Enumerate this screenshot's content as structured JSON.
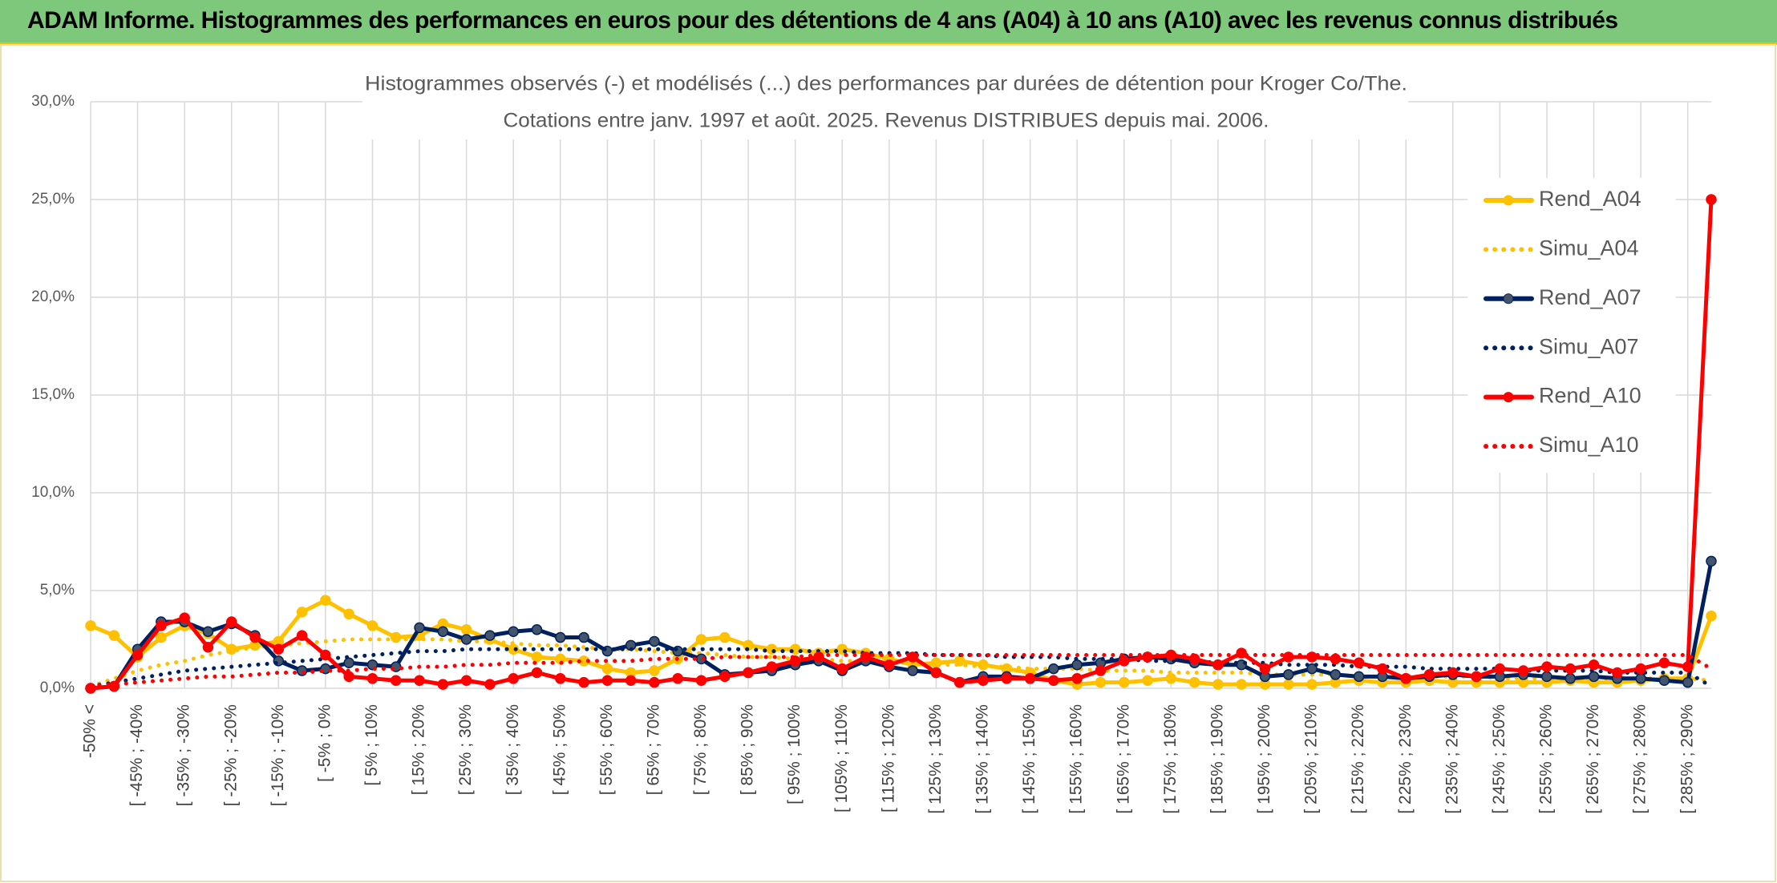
{
  "header": "ADAM Informe. Histogrammes des performances en euros pour des détentions de 4 ans (A04) à 10 ans (A10) avec les revenus connus distribués",
  "chart_data": {
    "type": "line",
    "title": "Histogrammes observés (-) et modélisés (...) des performances par durées de détention pour Kroger Co/The.",
    "subtitle": "Cotations entre janv. 1997 et août. 2025. Revenus DISTRIBUES depuis mai. 2006.",
    "categories": [
      "-50% <",
      null,
      "[ -45% ; -40%",
      null,
      "[ -35% ; -30%",
      null,
      "[ -25% ; -20%",
      null,
      "[ -15% ; -10%",
      null,
      "[ -5% ; 0%",
      null,
      "[ 5% ; 10%",
      null,
      "[ 15% ; 20%",
      null,
      "[ 25% ; 30%",
      null,
      "[ 35% ; 40%",
      null,
      "[ 45% ; 50%",
      null,
      "[ 55% ; 60%",
      null,
      "[ 65% ; 70%",
      null,
      "[ 75% ; 80%",
      null,
      "[ 85% ; 90%",
      null,
      "[ 95% ; 100%",
      null,
      "[ 105% ; 110%",
      null,
      "[ 115% ; 120%",
      null,
      "[ 125% ; 130%",
      null,
      "[ 135% ; 140%",
      null,
      "[ 145% ; 150%",
      null,
      "[ 155% ; 160%",
      null,
      "[ 165% ; 170%",
      null,
      "[ 175% ; 180%",
      null,
      "[ 185% ; 190%",
      null,
      "[ 195% ; 200%",
      null,
      "[ 205% ; 210%",
      null,
      "[ 215% ; 220%",
      null,
      "[ 225% ; 230%",
      null,
      "[ 235% ; 240%",
      null,
      "[ 245% ; 250%",
      null,
      "[ 255% ; 260%",
      null,
      "[ 265% ; 270%",
      null,
      "[ 275% ; 280%",
      null,
      "[ 285% ; 290%",
      null
    ],
    "series": [
      {
        "name": "Rend_A04",
        "color": "#FFC000",
        "style": "solid",
        "marker": true,
        "values": [
          3.2,
          2.7,
          1.6,
          2.6,
          3.2,
          2.8,
          2.0,
          2.2,
          2.4,
          3.9,
          4.5,
          3.8,
          3.2,
          2.6,
          2.7,
          3.3,
          3.0,
          2.5,
          2.0,
          1.6,
          1.5,
          1.4,
          1.0,
          0.8,
          0.9,
          1.5,
          2.5,
          2.6,
          2.2,
          2.0,
          2.0,
          1.8,
          2.0,
          1.8,
          1.5,
          1.2,
          1.3,
          1.4,
          1.2,
          1.0,
          0.8,
          0.4,
          0.2,
          0.3,
          0.3,
          0.4,
          0.5,
          0.3,
          0.2,
          0.2,
          0.2,
          0.2,
          0.2,
          0.3,
          0.4,
          0.3,
          0.3,
          0.4,
          0.3,
          0.3,
          0.3,
          0.3,
          0.3,
          0.4,
          0.3,
          0.3,
          0.4,
          0.5,
          0.5,
          3.7
        ]
      },
      {
        "name": "Simu_A04",
        "color": "#FFC000",
        "style": "dotted",
        "marker": false,
        "values": [
          0.1,
          0.5,
          0.9,
          1.2,
          1.4,
          1.7,
          1.9,
          2.1,
          2.2,
          2.3,
          2.4,
          2.5,
          2.5,
          2.5,
          2.5,
          2.5,
          2.4,
          2.4,
          2.3,
          2.2,
          2.2,
          2.1,
          2.0,
          2.0,
          1.9,
          1.8,
          1.8,
          1.7,
          1.6,
          1.6,
          1.5,
          1.5,
          1.4,
          1.4,
          1.3,
          1.3,
          1.2,
          1.2,
          1.1,
          1.1,
          1.0,
          1.0,
          1.0,
          0.9,
          0.9,
          0.9,
          0.8,
          0.8,
          0.8,
          0.8,
          0.7,
          0.7,
          0.7,
          0.7,
          0.6,
          0.6,
          0.6,
          0.6,
          0.6,
          0.6,
          0.5,
          0.5,
          0.5,
          0.5,
          0.5,
          0.5,
          0.5,
          0.5,
          0.5,
          0.4
        ]
      },
      {
        "name": "Rend_A07",
        "color": "#002060",
        "style": "solid",
        "marker": true,
        "values": [
          0,
          0.1,
          2.0,
          3.4,
          3.4,
          2.9,
          3.3,
          2.7,
          1.4,
          0.9,
          1.0,
          1.3,
          1.2,
          1.1,
          3.1,
          2.9,
          2.5,
          2.7,
          2.9,
          3.0,
          2.6,
          2.6,
          1.9,
          2.2,
          2.4,
          1.9,
          1.5,
          0.7,
          0.8,
          0.9,
          1.2,
          1.4,
          0.9,
          1.4,
          1.1,
          0.9,
          0.8,
          0.3,
          0.6,
          0.6,
          0.5,
          1.0,
          1.2,
          1.3,
          1.5,
          1.6,
          1.5,
          1.3,
          1.2,
          1.2,
          0.6,
          0.7,
          1.0,
          0.7,
          0.6,
          0.6,
          0.5,
          0.6,
          0.7,
          0.6,
          0.6,
          0.7,
          0.6,
          0.5,
          0.6,
          0.5,
          0.5,
          0.4,
          0.3,
          6.5
        ]
      },
      {
        "name": "Simu_A07",
        "color": "#002060",
        "style": "dotted",
        "marker": false,
        "values": [
          0.1,
          0.3,
          0.5,
          0.7,
          0.9,
          1.0,
          1.1,
          1.2,
          1.3,
          1.4,
          1.5,
          1.6,
          1.7,
          1.8,
          1.9,
          1.9,
          2.0,
          2.0,
          2.0,
          2.0,
          2.0,
          2.0,
          2.0,
          2.0,
          2.0,
          2.0,
          2.0,
          2.0,
          2.0,
          1.9,
          1.9,
          1.9,
          1.9,
          1.8,
          1.8,
          1.8,
          1.7,
          1.7,
          1.7,
          1.6,
          1.6,
          1.6,
          1.5,
          1.5,
          1.5,
          1.4,
          1.4,
          1.4,
          1.3,
          1.3,
          1.3,
          1.2,
          1.2,
          1.2,
          1.1,
          1.1,
          1.1,
          1.0,
          1.0,
          1.0,
          1.0,
          0.9,
          0.9,
          0.9,
          0.9,
          0.8,
          0.8,
          0.8,
          0.8,
          0.1
        ]
      },
      {
        "name": "Rend_A10",
        "color": "#FF0000",
        "style": "solid",
        "marker": true,
        "values": [
          0,
          0.1,
          1.7,
          3.2,
          3.6,
          2.1,
          3.4,
          2.6,
          2.0,
          2.7,
          1.7,
          0.6,
          0.5,
          0.4,
          0.4,
          0.2,
          0.4,
          0.2,
          0.5,
          0.8,
          0.5,
          0.3,
          0.4,
          0.4,
          0.3,
          0.5,
          0.4,
          0.6,
          0.8,
          1.1,
          1.4,
          1.6,
          1.0,
          1.6,
          1.2,
          1.6,
          0.8,
          0.3,
          0.4,
          0.5,
          0.5,
          0.4,
          0.5,
          0.9,
          1.4,
          1.6,
          1.7,
          1.5,
          1.2,
          1.8,
          1.0,
          1.6,
          1.6,
          1.5,
          1.3,
          1.0,
          0.5,
          0.7,
          0.8,
          0.6,
          1.0,
          0.9,
          1.1,
          1.0,
          1.2,
          0.8,
          1.0,
          1.3,
          1.1,
          25.0
        ]
      },
      {
        "name": "Simu_A10",
        "color": "#FF0000",
        "style": "dotted",
        "marker": false,
        "values": [
          0.1,
          0.2,
          0.3,
          0.4,
          0.5,
          0.6,
          0.6,
          0.7,
          0.8,
          0.8,
          0.9,
          0.9,
          1.0,
          1.0,
          1.1,
          1.1,
          1.2,
          1.2,
          1.3,
          1.3,
          1.3,
          1.4,
          1.4,
          1.4,
          1.5,
          1.5,
          1.5,
          1.6,
          1.6,
          1.6,
          1.6,
          1.7,
          1.7,
          1.7,
          1.7,
          1.7,
          1.7,
          1.7,
          1.7,
          1.7,
          1.7,
          1.7,
          1.7,
          1.7,
          1.7,
          1.7,
          1.7,
          1.7,
          1.7,
          1.7,
          1.7,
          1.7,
          1.7,
          1.7,
          1.7,
          1.7,
          1.7,
          1.7,
          1.7,
          1.7,
          1.7,
          1.7,
          1.7,
          1.7,
          1.7,
          1.7,
          1.7,
          1.7,
          1.7,
          1.0
        ]
      }
    ],
    "ylim": [
      0,
      30
    ],
    "yticks": [
      {
        "value": 0,
        "label": "0,0%"
      },
      {
        "value": 5,
        "label": "5,0%"
      },
      {
        "value": 10,
        "label": "10,0%"
      },
      {
        "value": 15,
        "label": "15,0%"
      },
      {
        "value": 20,
        "label": "20,0%"
      },
      {
        "value": 25,
        "label": "25,0%"
      },
      {
        "value": 30,
        "label": "30,0%"
      }
    ],
    "grid": true,
    "legend": "right"
  }
}
